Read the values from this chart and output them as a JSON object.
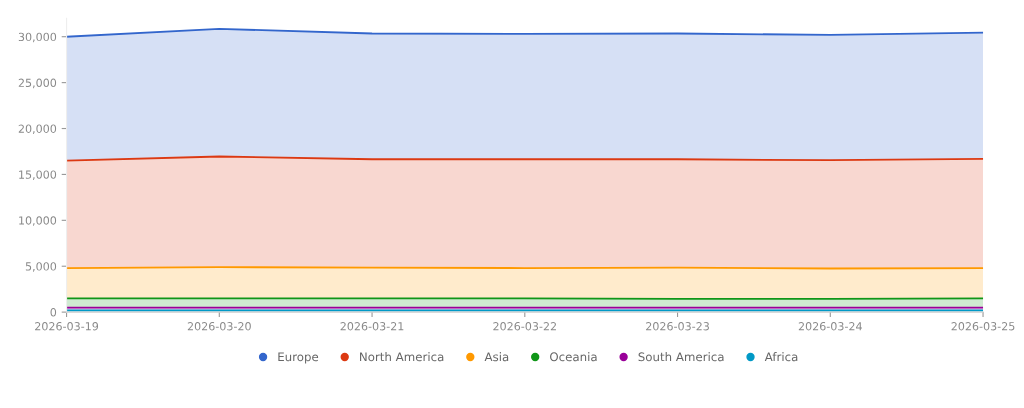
{
  "chart_data": {
    "type": "area",
    "stacked": true,
    "legend": "bottom",
    "grid": false,
    "marker": "none",
    "categories": [
      "2026-03-19",
      "2026-03-20",
      "2026-03-21",
      "2026-03-22",
      "2026-03-23",
      "2026-03-24",
      "2026-03-25"
    ],
    "ylim": [
      0,
      32000
    ],
    "yticks": [
      0,
      {
        "value": 5000,
        "label": "5,000"
      },
      {
        "value": 10000,
        "label": "10,000"
      },
      {
        "value": 15000,
        "label": "15,000"
      },
      {
        "value": 20000,
        "label": "20,000"
      },
      {
        "value": 25000,
        "label": "25,000"
      },
      {
        "value": 30000,
        "label": "30,000"
      }
    ],
    "series": [
      {
        "name": "Africa",
        "color": "#0099c6",
        "values": [
          200,
          200,
          200,
          200,
          200,
          200,
          200
        ]
      },
      {
        "name": "South America",
        "color": "#990099",
        "values": [
          300,
          300,
          300,
          300,
          300,
          300,
          300
        ]
      },
      {
        "name": "Oceania",
        "color": "#109618",
        "values": [
          1000,
          1000,
          1000,
          1000,
          950,
          950,
          1000
        ]
      },
      {
        "name": "Asia",
        "color": "#ff9900",
        "values": [
          3300,
          3400,
          3350,
          3300,
          3400,
          3300,
          3300
        ]
      },
      {
        "name": "North America",
        "color": "#dc3912",
        "values": [
          11700,
          12050,
          11800,
          11850,
          11800,
          11800,
          11900
        ]
      },
      {
        "name": "Europe",
        "color": "#3366cc",
        "values": [
          13500,
          13900,
          13700,
          13650,
          13700,
          13650,
          13750
        ]
      }
    ]
  }
}
